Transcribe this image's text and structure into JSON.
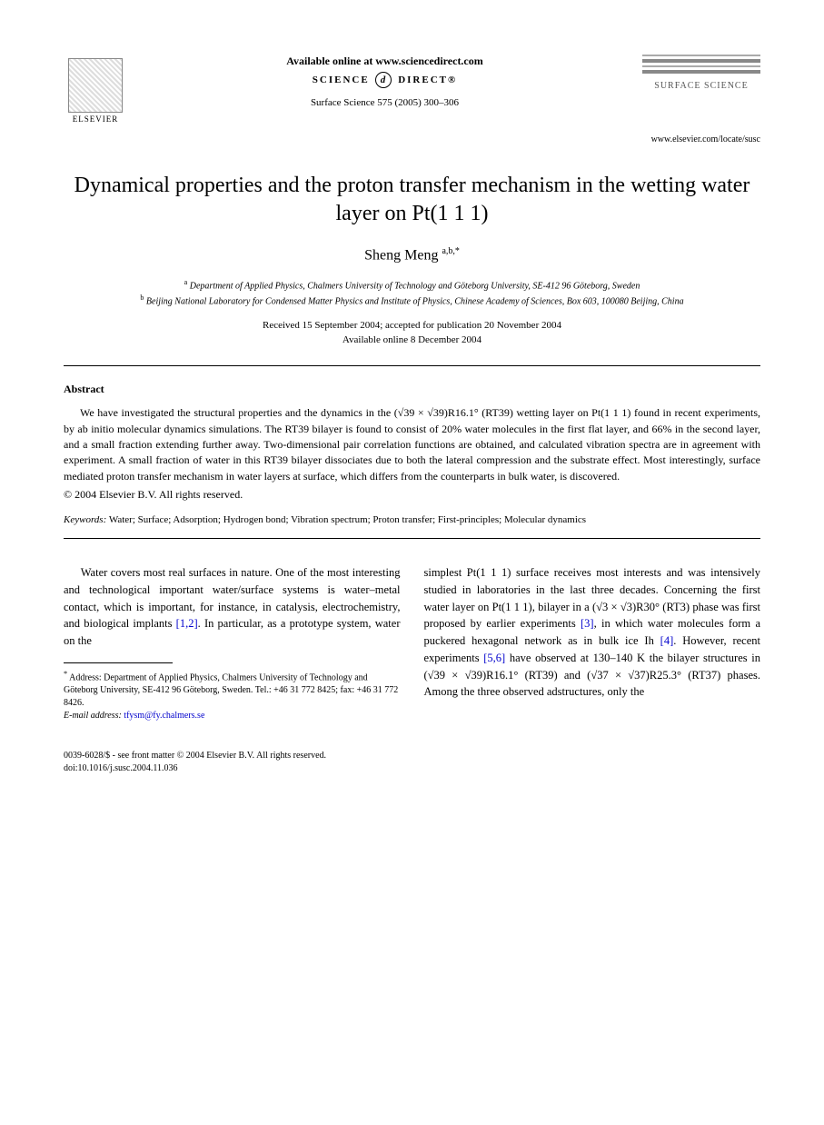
{
  "header": {
    "publisher": "ELSEVIER",
    "available_text": "Available online at www.sciencedirect.com",
    "science_direct_left": "SCIENCE",
    "science_direct_right": "DIRECT®",
    "journal_ref": "Surface Science 575 (2005) 300–306",
    "journal_logo_text": "SURFACE SCIENCE",
    "locate_url": "www.elsevier.com/locate/susc"
  },
  "title": "Dynamical properties and the proton transfer mechanism in the wetting water layer on Pt(1 1 1)",
  "authors": {
    "name": "Sheng Meng",
    "marks": "a,b,*"
  },
  "affiliations": {
    "a": "Department of Applied Physics, Chalmers University of Technology and Göteborg University, SE-412 96 Göteborg, Sweden",
    "b": "Beijing National Laboratory for Condensed Matter Physics and Institute of Physics, Chinese Academy of Sciences, Box 603, 100080 Beijing, China"
  },
  "dates": {
    "received": "Received 15 September 2004; accepted for publication 20 November 2004",
    "online": "Available online 8 December 2004"
  },
  "abstract": {
    "heading": "Abstract",
    "body": "We have investigated the structural properties and the dynamics in the (√39 × √39)R16.1° (RT39) wetting layer on Pt(1 1 1) found in recent experiments, by ab initio molecular dynamics simulations. The RT39 bilayer is found to consist of 20% water molecules in the first flat layer, and 66% in the second layer, and a small fraction extending further away. Two-dimensional pair correlation functions are obtained, and calculated vibration spectra are in agreement with experiment. A small fraction of water in this RT39 bilayer dissociates due to both the lateral compression and the substrate effect. Most interestingly, surface mediated proton transfer mechanism in water layers at surface, which differs from the counterparts in bulk water, is discovered.",
    "copyright": "© 2004 Elsevier B.V. All rights reserved."
  },
  "keywords": {
    "label": "Keywords:",
    "list": "Water; Surface; Adsorption; Hydrogen bond; Vibration spectrum; Proton transfer; First-principles; Molecular dynamics"
  },
  "body": {
    "col1": "Water covers most real surfaces in nature. One of the most interesting and technological important water/surface systems is water–metal contact, which is important, for instance, in catalysis, electrochemistry, and biological implants [1,2]. In particular, as a prototype system, water on the",
    "col2": "simplest Pt(1 1 1) surface receives most interests and was intensively studied in laboratories in the last three decades. Concerning the first water layer on Pt(1 1 1), bilayer in a (√3 × √3)R30° (RT3) phase was first proposed by earlier experiments [3], in which water molecules form a puckered hexagonal network as in bulk ice Ih [4]. However, recent experiments [5,6] have observed at 130–140 K the bilayer structures in (√39 × √39)R16.1° (RT39) and (√37 × √37)R25.3° (RT37) phases. Among the three observed adstructures, only the",
    "refs": {
      "r12": "[1,2]",
      "r3": "[3]",
      "r4": "[4]",
      "r56": "[5,6]"
    }
  },
  "footnote": {
    "corr_label": "*",
    "corr_text": "Address: Department of Applied Physics, Chalmers University of Technology and Göteborg University, SE-412 96 Göteborg, Sweden. Tel.: +46 31 772 8425; fax: +46 31 772 8426.",
    "email_label": "E-mail address:",
    "email": "tfysm@fy.chalmers.se"
  },
  "footer": {
    "line1": "0039-6028/$ - see front matter © 2004 Elsevier B.V. All rights reserved.",
    "line2": "doi:10.1016/j.susc.2004.11.036"
  }
}
